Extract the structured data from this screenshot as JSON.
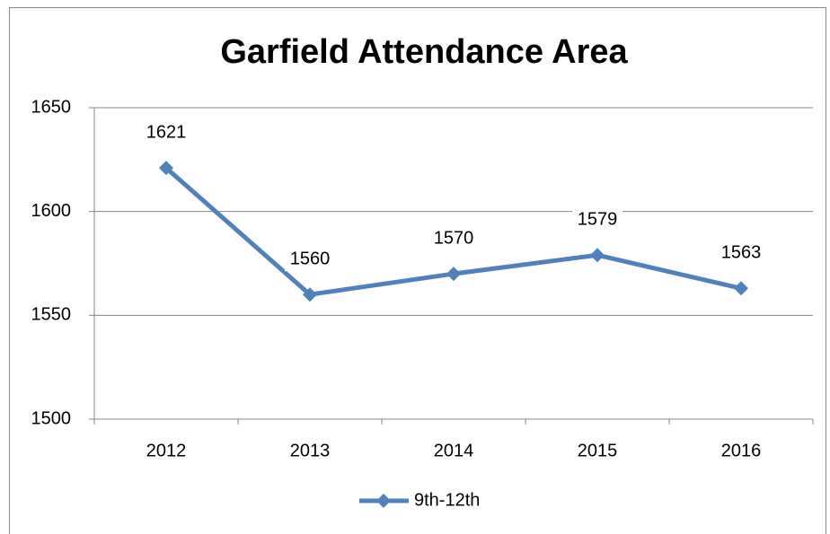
{
  "chart_data": {
    "type": "line",
    "title": "Garfield Attendance Area",
    "categories": [
      "2012",
      "2013",
      "2014",
      "2015",
      "2016"
    ],
    "series": [
      {
        "name": "9th-12th",
        "color": "#4f81bd",
        "values": [
          1621,
          1560,
          1570,
          1579,
          1563
        ]
      }
    ],
    "ylim": [
      1500,
      1650
    ],
    "yticks": [
      1500,
      1550,
      1600,
      1650
    ],
    "grid": true,
    "legend": "bottom"
  }
}
